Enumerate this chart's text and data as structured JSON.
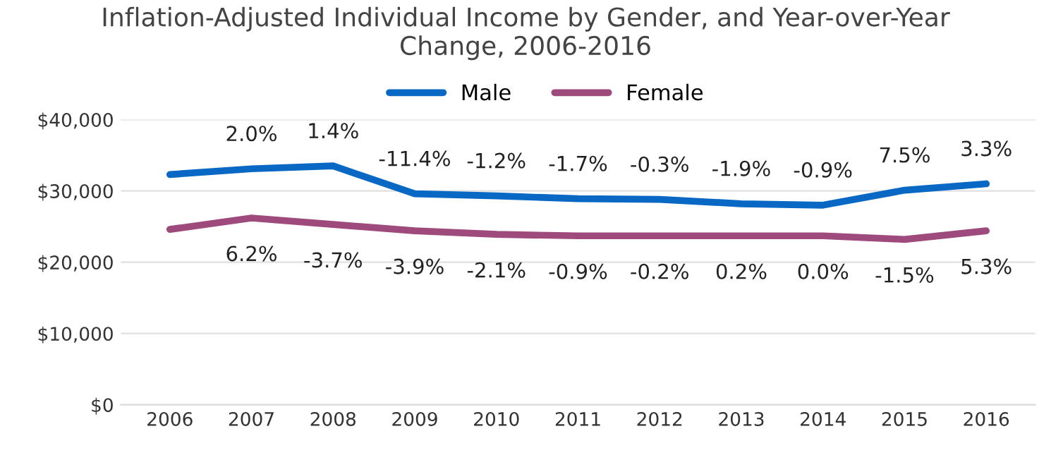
{
  "chart_data": {
    "type": "line",
    "title": "Inflation-Adjusted Individual Income by Gender, and Year-over-Year\nChange, 2006-2016",
    "categories": [
      "2006",
      "2007",
      "2008",
      "2009",
      "2010",
      "2011",
      "2012",
      "2013",
      "2014",
      "2015",
      "2016"
    ],
    "series": [
      {
        "name": "Male",
        "color": "#0868c4",
        "values": [
          32300,
          33100,
          33500,
          29600,
          29300,
          28900,
          28800,
          28200,
          28000,
          30100,
          31000
        ]
      },
      {
        "name": "Female",
        "color": "#9e4a7c",
        "values": [
          24600,
          26200,
          25300,
          24400,
          23900,
          23700,
          23700,
          23700,
          23700,
          23200,
          24400
        ]
      }
    ],
    "annotations": [
      {
        "text": "2.0%",
        "x": "2007",
        "y": 33100
      },
      {
        "text": "1.4%",
        "x": "2008",
        "y": 33500
      },
      {
        "text": "-11.4%",
        "x": "2009",
        "y": 29600
      },
      {
        "text": "-1.2%",
        "x": "2010",
        "y": 29300
      },
      {
        "text": "-1.7%",
        "x": "2011",
        "y": 28900
      },
      {
        "text": "-0.3%",
        "x": "2012",
        "y": 28800
      },
      {
        "text": "-1.9%",
        "x": "2013",
        "y": 28200
      },
      {
        "text": "-0.9%",
        "x": "2014",
        "y": 28000
      },
      {
        "text": "7.5%",
        "x": "2015",
        "y": 30100
      },
      {
        "text": "3.3%",
        "x": "2016",
        "y": 31000
      },
      {
        "text": "6.2%",
        "x": "2007",
        "y": 26200
      },
      {
        "text": "-3.7%",
        "x": "2008",
        "y": 25300
      },
      {
        "text": "-3.9%",
        "x": "2009",
        "y": 24400
      },
      {
        "text": "-2.1%",
        "x": "2010",
        "y": 23900
      },
      {
        "text": "-0.9%",
        "x": "2011",
        "y": 23700
      },
      {
        "text": "-0.2%",
        "x": "2012",
        "y": 23700
      },
      {
        "text": "0.2%",
        "x": "2013",
        "y": 23700
      },
      {
        "text": "0.0%",
        "x": "2014",
        "y": 23700
      },
      {
        "text": "-1.5%",
        "x": "2015",
        "y": 23200
      },
      {
        "text": "5.3%",
        "x": "2016",
        "y": 24400
      }
    ],
    "ylim": [
      0,
      40000
    ],
    "yticks": [
      {
        "value": 0,
        "label": "$0"
      },
      {
        "value": 10000,
        "label": "$10,000"
      },
      {
        "value": 20000,
        "label": "$20,000"
      },
      {
        "value": 30000,
        "label": "$30,000"
      },
      {
        "value": 40000,
        "label": "$40,000"
      }
    ],
    "grid": "y",
    "legend": "top",
    "marker": "none",
    "line_style": "solid"
  }
}
